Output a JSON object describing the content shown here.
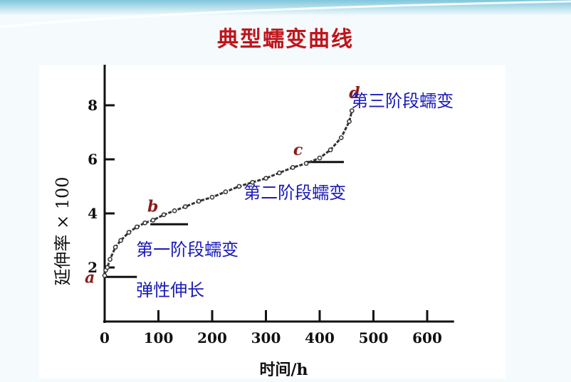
{
  "slide": {
    "title": "典型蠕变曲线"
  },
  "colors": {
    "title": "#c0141b",
    "stage_label": "#1a1ab8",
    "point_label": "#8b1a1a",
    "curve": "#333333",
    "background_top": "#9fd6e6",
    "plot_background": "#ffffff"
  },
  "chart_data": {
    "type": "line",
    "xlabel": "时间/h",
    "ylabel": "延伸率 × 100",
    "xlim": [
      0,
      650
    ],
    "ylim": [
      0,
      9.5
    ],
    "xticks": [
      0,
      100,
      200,
      300,
      400,
      500,
      600
    ],
    "xtick_labels": [
      "0",
      "100",
      "200",
      "300",
      "400",
      "500",
      "600"
    ],
    "yticks": [
      2,
      4,
      6,
      8
    ],
    "ytick_labels": [
      "2",
      "4",
      "6",
      "8"
    ],
    "grid": false,
    "series": [
      {
        "x": [
          0,
          2,
          5,
          10,
          20,
          30,
          45,
          60,
          75,
          90,
          110,
          130,
          150,
          175,
          200,
          225,
          250,
          275,
          300,
          325,
          350,
          375,
          400,
          420,
          440,
          455,
          460
        ],
        "y": [
          1.7,
          1.9,
          2.0,
          2.3,
          2.75,
          3.0,
          3.3,
          3.5,
          3.65,
          3.75,
          3.95,
          4.1,
          4.25,
          4.45,
          4.6,
          4.8,
          5.0,
          5.15,
          5.3,
          5.5,
          5.7,
          5.85,
          6.05,
          6.35,
          6.8,
          7.4,
          7.8
        ]
      }
    ],
    "points": [
      {
        "label": "a",
        "x": 0,
        "y": 1.7
      },
      {
        "label": "b",
        "x": 90,
        "y": 3.8
      },
      {
        "label": "c",
        "x": 380,
        "y": 5.95
      },
      {
        "label": "d",
        "x": 460,
        "y": 7.9
      }
    ],
    "stage_segments": [
      {
        "y": 1.65,
        "x": [
          0,
          60
        ]
      },
      {
        "y": 3.6,
        "x": [
          85,
          155
        ]
      },
      {
        "y": 5.9,
        "x": [
          375,
          445
        ]
      }
    ],
    "annotations": [
      {
        "text": "弹性伸长",
        "x": 85,
        "y": 0.95
      },
      {
        "text": "第一阶段蠕变",
        "x": 85,
        "y": 2.45
      },
      {
        "text": "第二阶段蠕变",
        "x": 285,
        "y": 4.55
      },
      {
        "text": "第三阶段蠕变",
        "x": 485,
        "y": 7.95
      }
    ]
  }
}
